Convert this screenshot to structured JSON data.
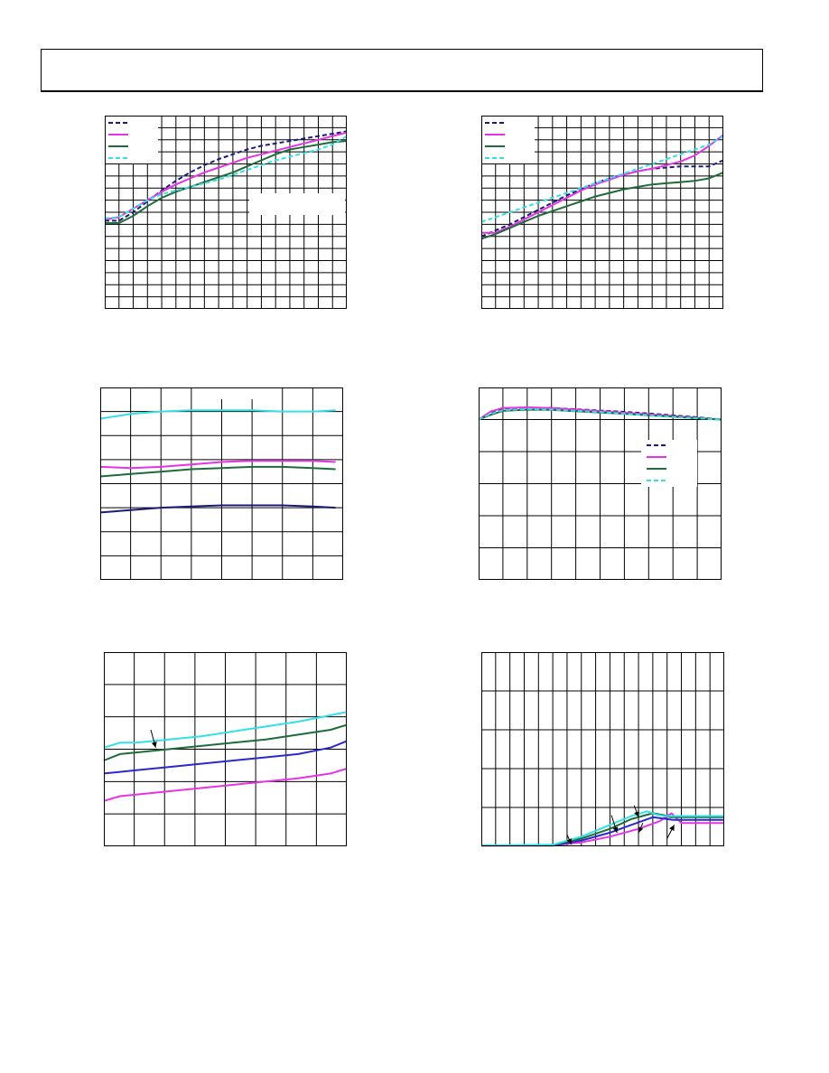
{
  "header": {
    "title": ""
  },
  "colors": {
    "navy": "#1a1a7a",
    "magenta": "#e633e6",
    "green": "#1f6b3a",
    "cyan": "#33e0e6",
    "blue": "#2929cc",
    "grid": "#000000"
  },
  "chart_data": [
    {
      "id": "chart-1",
      "type": "line",
      "grid": true,
      "xlim": [
        0,
        17
      ],
      "ylim": [
        0,
        16
      ],
      "x_divisions": 17,
      "y_divisions": 16,
      "legend": "top-left",
      "label_box": "right-middle",
      "series": [
        {
          "color": "navy",
          "dash": true,
          "x": [
            0,
            1,
            2,
            3,
            4,
            5,
            6,
            7,
            8,
            9,
            10,
            11,
            12,
            13,
            14,
            15,
            16,
            17
          ],
          "y": [
            7.3,
            7.3,
            8.0,
            8.9,
            9.8,
            10.6,
            11.3,
            11.9,
            12.4,
            12.8,
            13.2,
            13.5,
            13.7,
            13.9,
            14.1,
            14.3,
            14.5,
            14.7
          ]
        },
        {
          "color": "magenta",
          "dash": false,
          "x": [
            0,
            1,
            2,
            3,
            4,
            5,
            6,
            7,
            8,
            9,
            10,
            11,
            12,
            13,
            14,
            15,
            16,
            17
          ],
          "y": [
            7.4,
            7.6,
            8.3,
            9.0,
            9.7,
            10.3,
            10.8,
            11.3,
            11.7,
            12.1,
            12.5,
            12.8,
            13.1,
            13.4,
            13.7,
            14.0,
            14.3,
            14.6
          ]
        },
        {
          "color": "green",
          "dash": false,
          "x": [
            0,
            1,
            2,
            3,
            4,
            5,
            6,
            7,
            8,
            9,
            10,
            11,
            12,
            13,
            14,
            15,
            16,
            17
          ],
          "y": [
            7.1,
            7.1,
            7.7,
            8.5,
            9.2,
            9.7,
            10.1,
            10.5,
            10.9,
            11.3,
            11.8,
            12.3,
            12.8,
            13.2,
            13.4,
            13.6,
            13.8,
            13.9
          ]
        },
        {
          "color": "cyan",
          "dash": true,
          "x": [
            0,
            1,
            2,
            3,
            4,
            5,
            6,
            7,
            8,
            9,
            10,
            11,
            12,
            13,
            14,
            15,
            16,
            17
          ],
          "y": [
            7.5,
            7.6,
            8.3,
            9.0,
            9.5,
            9.8,
            10.1,
            10.4,
            10.7,
            11.1,
            11.5,
            11.9,
            12.3,
            12.6,
            12.9,
            13.2,
            13.6,
            14.3
          ]
        }
      ]
    },
    {
      "id": "chart-2",
      "type": "line",
      "grid": true,
      "xlim": [
        0,
        17
      ],
      "ylim": [
        0,
        16
      ],
      "x_divisions": 17,
      "y_divisions": 16,
      "legend": "top-left",
      "series": [
        {
          "color": "navy",
          "dash": true,
          "x": [
            0,
            1,
            2,
            3,
            4,
            5,
            6,
            7,
            8,
            9,
            10,
            11,
            12,
            13,
            14,
            15,
            16,
            17
          ],
          "y": [
            6.0,
            6.5,
            7.0,
            7.6,
            8.2,
            8.8,
            9.4,
            9.9,
            10.4,
            10.8,
            11.1,
            11.4,
            11.6,
            11.7,
            11.8,
            11.8,
            11.8,
            12.3
          ]
        },
        {
          "color": "magenta",
          "dash": false,
          "x": [
            0,
            1,
            2,
            3,
            4,
            5,
            6,
            7,
            8,
            9,
            10,
            11,
            12,
            13,
            14,
            15,
            16,
            17
          ],
          "y": [
            6.3,
            6.3,
            6.8,
            7.4,
            8.0,
            8.6,
            9.2,
            9.8,
            10.3,
            10.7,
            11.1,
            11.4,
            11.6,
            11.9,
            12.2,
            12.7,
            13.5,
            14.4
          ]
        },
        {
          "color": "green",
          "dash": false,
          "x": [
            0,
            1,
            2,
            3,
            4,
            5,
            6,
            7,
            8,
            9,
            10,
            11,
            12,
            13,
            14,
            15,
            16,
            17
          ],
          "y": [
            5.8,
            6.2,
            6.7,
            7.2,
            7.7,
            8.1,
            8.5,
            8.9,
            9.3,
            9.6,
            9.9,
            10.1,
            10.3,
            10.4,
            10.5,
            10.6,
            10.8,
            11.3
          ]
        },
        {
          "color": "cyan",
          "dash": true,
          "x": [
            0,
            1,
            2,
            3,
            4,
            5,
            6,
            7,
            8,
            9,
            10,
            11,
            12,
            13,
            14,
            15,
            16,
            17
          ],
          "y": [
            7.2,
            7.6,
            8.0,
            8.4,
            8.8,
            9.2,
            9.6,
            10.0,
            10.4,
            10.8,
            11.2,
            11.6,
            12.0,
            12.4,
            12.8,
            13.2,
            13.6,
            14.3
          ]
        }
      ]
    },
    {
      "id": "chart-3",
      "type": "line",
      "grid": true,
      "xlim": [
        0,
        8
      ],
      "ylim": [
        0,
        8
      ],
      "x_divisions": 8,
      "y_divisions": 8,
      "label_box": "top-middle",
      "series": [
        {
          "color": "cyan",
          "dash": false,
          "x": [
            0,
            1,
            2,
            3,
            4,
            5,
            6,
            7,
            7.75
          ],
          "y": [
            6.7,
            6.9,
            7.0,
            7.05,
            7.05,
            7.05,
            7.0,
            7.0,
            7.05
          ]
        },
        {
          "color": "magenta",
          "dash": false,
          "x": [
            0,
            1,
            2,
            3,
            4,
            5,
            6,
            7,
            7.75
          ],
          "y": [
            4.7,
            4.65,
            4.7,
            4.8,
            4.9,
            4.95,
            4.95,
            4.95,
            4.9
          ]
        },
        {
          "color": "green",
          "dash": false,
          "x": [
            0,
            1,
            2,
            3,
            4,
            5,
            6,
            7,
            7.75
          ],
          "y": [
            4.3,
            4.4,
            4.5,
            4.6,
            4.65,
            4.7,
            4.7,
            4.65,
            4.6
          ]
        },
        {
          "color": "navy",
          "dash": false,
          "x": [
            0,
            1,
            2,
            3,
            4,
            5,
            6,
            7,
            7.75
          ],
          "y": [
            2.8,
            2.9,
            3.0,
            3.05,
            3.1,
            3.1,
            3.1,
            3.05,
            3.0
          ]
        }
      ]
    },
    {
      "id": "chart-4",
      "type": "line",
      "grid": true,
      "xlim": [
        0,
        10
      ],
      "ylim": [
        0,
        6
      ],
      "x_divisions": 10,
      "y_divisions": 6,
      "legend": "right-middle",
      "series": [
        {
          "color": "navy",
          "dash": true,
          "x": [
            0,
            0.5,
            1,
            2,
            3,
            4,
            5,
            6,
            7,
            8,
            9,
            10
          ],
          "y": [
            5.0,
            5.2,
            5.32,
            5.37,
            5.36,
            5.32,
            5.28,
            5.24,
            5.19,
            5.13,
            5.07,
            5.0
          ]
        },
        {
          "color": "magenta",
          "dash": false,
          "x": [
            0,
            0.5,
            1,
            2,
            3,
            4,
            5,
            6,
            7,
            8,
            9,
            10
          ],
          "y": [
            5.0,
            5.25,
            5.36,
            5.38,
            5.36,
            5.31,
            5.26,
            5.21,
            5.16,
            5.11,
            5.05,
            5.0
          ]
        },
        {
          "color": "green",
          "dash": false,
          "x": [
            0,
            0.5,
            1,
            2,
            3,
            4,
            5,
            6,
            7,
            8,
            9,
            10
          ],
          "y": [
            5.0,
            5.15,
            5.27,
            5.31,
            5.3,
            5.26,
            5.22,
            5.18,
            5.13,
            5.09,
            5.04,
            5.0
          ]
        },
        {
          "color": "cyan",
          "dash": true,
          "x": [
            0,
            0.5,
            1,
            2,
            3,
            4,
            5,
            6,
            7,
            8,
            9,
            10
          ],
          "y": [
            5.0,
            5.18,
            5.29,
            5.33,
            5.31,
            5.27,
            5.23,
            5.18,
            5.13,
            5.08,
            5.04,
            5.0
          ]
        }
      ]
    },
    {
      "id": "chart-5",
      "type": "line",
      "grid": true,
      "xlim": [
        0,
        7.5
      ],
      "ylim": [
        0,
        6
      ],
      "x_divisions": 8,
      "y_divisions": 6,
      "series": [
        {
          "color": "cyan",
          "dash": false,
          "x": [
            0,
            0.5,
            1,
            2,
            3,
            4,
            5,
            6,
            7,
            7.5
          ],
          "y": [
            3.05,
            3.2,
            3.2,
            3.3,
            3.4,
            3.55,
            3.7,
            3.85,
            4.05,
            4.15
          ]
        },
        {
          "color": "green",
          "dash": false,
          "x": [
            0,
            0.5,
            1,
            2,
            3,
            4,
            5,
            6,
            7,
            7.5
          ],
          "y": [
            2.65,
            2.85,
            2.9,
            3.0,
            3.1,
            3.2,
            3.3,
            3.45,
            3.6,
            3.75
          ]
        },
        {
          "color": "blue",
          "dash": false,
          "x": [
            0,
            0.5,
            1,
            2,
            3,
            4,
            5,
            6,
            7,
            7.5
          ],
          "y": [
            2.25,
            2.3,
            2.35,
            2.45,
            2.55,
            2.65,
            2.75,
            2.85,
            3.05,
            3.25
          ]
        },
        {
          "color": "magenta",
          "dash": false,
          "x": [
            0,
            0.5,
            1,
            2,
            3,
            4,
            5,
            6,
            7,
            7.5
          ],
          "y": [
            1.4,
            1.55,
            1.6,
            1.7,
            1.8,
            1.9,
            2.0,
            2.1,
            2.25,
            2.4
          ]
        }
      ],
      "arrows": [
        {
          "from": [
            1.45,
            3.6
          ],
          "to": [
            1.6,
            3.05
          ]
        }
      ]
    },
    {
      "id": "chart-6",
      "type": "line",
      "grid": true,
      "xlim": [
        0,
        17
      ],
      "ylim": [
        0,
        5
      ],
      "x_divisions": 17,
      "y_divisions": 5,
      "series": [
        {
          "color": "magenta",
          "dash": false,
          "x": [
            0,
            5,
            7,
            9,
            11,
            12.5,
            13.3,
            14,
            15,
            17
          ],
          "y": [
            0.02,
            0.02,
            0.1,
            0.25,
            0.45,
            0.65,
            0.85,
            0.6,
            0.6,
            0.6
          ]
        },
        {
          "color": "blue",
          "dash": false,
          "x": [
            0,
            5,
            7,
            9,
            10.5,
            12,
            13,
            13.4,
            14,
            15,
            17
          ],
          "y": [
            0.02,
            0.02,
            0.15,
            0.35,
            0.55,
            0.75,
            0.7,
            0.68,
            0.68,
            0.68,
            0.68
          ]
        },
        {
          "color": "green",
          "dash": false,
          "x": [
            0,
            5,
            7,
            9,
            10.5,
            12,
            12.8,
            13.2,
            14,
            15,
            17
          ],
          "y": [
            0.02,
            0.03,
            0.2,
            0.45,
            0.7,
            0.85,
            0.8,
            0.75,
            0.75,
            0.75,
            0.75
          ]
        },
        {
          "color": "cyan",
          "dash": false,
          "x": [
            0,
            5,
            7,
            9,
            10.5,
            11.6,
            12.2,
            12.8,
            14,
            15,
            17
          ],
          "y": [
            0.02,
            0.04,
            0.25,
            0.55,
            0.78,
            0.9,
            0.82,
            0.78,
            0.78,
            0.78,
            0.78
          ]
        }
      ],
      "arrows": [
        {
          "from": [
            6.0,
            0.3
          ],
          "to": [
            6.3,
            0.05
          ]
        },
        {
          "from": [
            9.1,
            0.8
          ],
          "to": [
            9.5,
            0.35
          ]
        },
        {
          "from": [
            10.7,
            1.05
          ],
          "to": [
            11.0,
            0.75
          ]
        },
        {
          "from": [
            11.3,
            0.6
          ],
          "to": [
            11.0,
            0.35
          ]
        },
        {
          "from": [
            13.0,
            0.2
          ],
          "to": [
            13.5,
            0.55
          ]
        }
      ]
    }
  ]
}
